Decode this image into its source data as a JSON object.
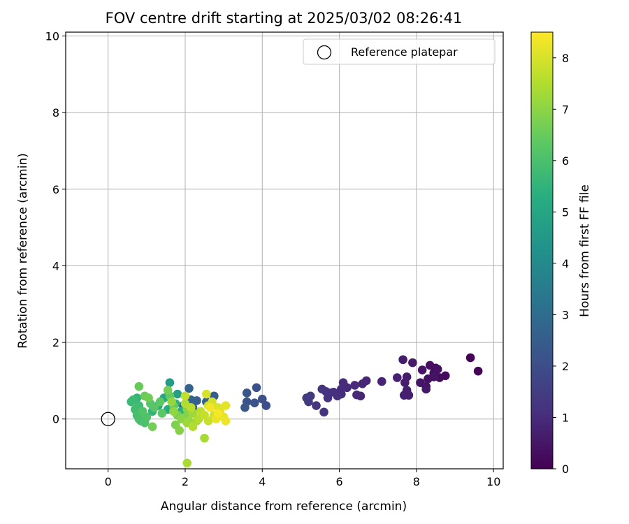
{
  "chart_data": {
    "type": "scatter",
    "title": "FOV centre drift starting at 2025/03/02 08:26:41",
    "xlabel": "Angular distance from reference (arcmin)",
    "ylabel": "Rotation from reference (arcmin)",
    "xlim": [
      -1.1,
      10.25
    ],
    "ylim": [
      -1.3,
      10.1
    ],
    "xticks": [
      "0",
      "2",
      "4",
      "6",
      "8",
      "10"
    ],
    "yticks": [
      "0",
      "2",
      "4",
      "6",
      "8",
      "10"
    ],
    "grid": true,
    "legend_position": "top-right",
    "legend": [
      {
        "label": "Reference platepar",
        "marker": "open-circle"
      }
    ],
    "reference_point": {
      "x": 0,
      "y": 0
    },
    "colorbar": {
      "label": "Hours from first FF file",
      "range": [
        0,
        8.5
      ],
      "ticks": [
        "0",
        "1",
        "2",
        "3",
        "4",
        "5",
        "6",
        "7",
        "8"
      ],
      "colormap": "viridis"
    },
    "points": [
      {
        "x": 9.4,
        "y": 1.6,
        "h": 0.05
      },
      {
        "x": 9.6,
        "y": 1.25,
        "h": 0.1
      },
      {
        "x": 8.75,
        "y": 1.13,
        "h": 0.2
      },
      {
        "x": 8.6,
        "y": 1.08,
        "h": 0.25
      },
      {
        "x": 8.5,
        "y": 1.33,
        "h": 0.3
      },
      {
        "x": 8.45,
        "y": 1.2,
        "h": 0.32
      },
      {
        "x": 8.35,
        "y": 1.4,
        "h": 0.35
      },
      {
        "x": 8.3,
        "y": 1.05,
        "h": 0.38
      },
      {
        "x": 8.25,
        "y": 0.85,
        "h": 0.4
      },
      {
        "x": 8.15,
        "y": 1.28,
        "h": 0.45
      },
      {
        "x": 8.1,
        "y": 0.95,
        "h": 0.48
      },
      {
        "x": 8.25,
        "y": 0.78,
        "h": 0.5
      },
      {
        "x": 8.45,
        "y": 1.1,
        "h": 0.42
      },
      {
        "x": 8.55,
        "y": 1.3,
        "h": 0.36
      },
      {
        "x": 7.9,
        "y": 1.47,
        "h": 0.55
      },
      {
        "x": 7.65,
        "y": 1.55,
        "h": 0.6
      },
      {
        "x": 7.75,
        "y": 1.1,
        "h": 0.62
      },
      {
        "x": 7.7,
        "y": 0.95,
        "h": 0.65
      },
      {
        "x": 7.75,
        "y": 0.75,
        "h": 0.68
      },
      {
        "x": 7.8,
        "y": 0.62,
        "h": 0.7
      },
      {
        "x": 7.68,
        "y": 0.62,
        "h": 0.72
      },
      {
        "x": 7.5,
        "y": 1.08,
        "h": 0.75
      },
      {
        "x": 7.1,
        "y": 0.98,
        "h": 0.8
      },
      {
        "x": 6.7,
        "y": 1.0,
        "h": 0.85
      },
      {
        "x": 6.6,
        "y": 0.92,
        "h": 0.88
      },
      {
        "x": 6.55,
        "y": 0.6,
        "h": 0.9
      },
      {
        "x": 6.45,
        "y": 0.63,
        "h": 0.92
      },
      {
        "x": 6.4,
        "y": 0.88,
        "h": 0.95
      },
      {
        "x": 6.2,
        "y": 0.82,
        "h": 0.98
      },
      {
        "x": 6.1,
        "y": 0.95,
        "h": 1.0
      },
      {
        "x": 6.05,
        "y": 0.78,
        "h": 1.02
      },
      {
        "x": 6.05,
        "y": 0.65,
        "h": 1.05
      },
      {
        "x": 5.95,
        "y": 0.6,
        "h": 1.08
      },
      {
        "x": 5.85,
        "y": 0.7,
        "h": 1.1
      },
      {
        "x": 5.75,
        "y": 0.68,
        "h": 1.12
      },
      {
        "x": 5.7,
        "y": 0.55,
        "h": 1.15
      },
      {
        "x": 5.65,
        "y": 0.72,
        "h": 1.18
      },
      {
        "x": 5.55,
        "y": 0.78,
        "h": 1.2
      },
      {
        "x": 5.6,
        "y": 0.18,
        "h": 1.25
      },
      {
        "x": 5.4,
        "y": 0.35,
        "h": 1.3
      },
      {
        "x": 5.25,
        "y": 0.6,
        "h": 1.35
      },
      {
        "x": 5.2,
        "y": 0.45,
        "h": 1.4
      },
      {
        "x": 5.15,
        "y": 0.55,
        "h": 1.45
      },
      {
        "x": 4.1,
        "y": 0.35,
        "h": 2.0
      },
      {
        "x": 4.0,
        "y": 0.52,
        "h": 2.05
      },
      {
        "x": 3.85,
        "y": 0.82,
        "h": 2.1
      },
      {
        "x": 3.8,
        "y": 0.42,
        "h": 2.15
      },
      {
        "x": 3.6,
        "y": 0.45,
        "h": 2.2
      },
      {
        "x": 3.6,
        "y": 0.68,
        "h": 2.25
      },
      {
        "x": 3.55,
        "y": 0.3,
        "h": 2.3
      },
      {
        "x": 2.75,
        "y": 0.6,
        "h": 2.5
      },
      {
        "x": 2.55,
        "y": 0.45,
        "h": 2.55
      },
      {
        "x": 2.3,
        "y": 0.48,
        "h": 2.6
      },
      {
        "x": 2.15,
        "y": 0.5,
        "h": 2.65
      },
      {
        "x": 2.1,
        "y": 0.8,
        "h": 2.7
      },
      {
        "x": 2.2,
        "y": 0.3,
        "h": 2.75
      },
      {
        "x": 1.95,
        "y": 0.35,
        "h": 2.8
      },
      {
        "x": 1.6,
        "y": 0.95,
        "h": 4.6
      },
      {
        "x": 1.8,
        "y": 0.65,
        "h": 4.8
      },
      {
        "x": 1.45,
        "y": 0.55,
        "h": 5.0
      },
      {
        "x": 1.3,
        "y": 0.35,
        "h": 5.1
      },
      {
        "x": 1.55,
        "y": 0.25,
        "h": 5.2
      },
      {
        "x": 1.75,
        "y": 0.4,
        "h": 5.3
      },
      {
        "x": 1.9,
        "y": 0.2,
        "h": 5.4
      },
      {
        "x": 1.15,
        "y": 0.2,
        "h": 5.5
      },
      {
        "x": 0.75,
        "y": 0.55,
        "h": 5.6
      },
      {
        "x": 0.6,
        "y": 0.45,
        "h": 5.7
      },
      {
        "x": 0.65,
        "y": 0.5,
        "h": 5.75
      },
      {
        "x": 0.8,
        "y": 0.35,
        "h": 5.8
      },
      {
        "x": 0.7,
        "y": 0.25,
        "h": 5.85
      },
      {
        "x": 0.75,
        "y": 0.1,
        "h": 5.9
      },
      {
        "x": 0.8,
        "y": 0.0,
        "h": 5.95
      },
      {
        "x": 0.85,
        "y": -0.05,
        "h": 6.0
      },
      {
        "x": 0.95,
        "y": -0.1,
        "h": 6.05
      },
      {
        "x": 1.0,
        "y": 0.05,
        "h": 6.1
      },
      {
        "x": 0.9,
        "y": 0.2,
        "h": 6.15
      },
      {
        "x": 1.1,
        "y": 0.4,
        "h": 6.2
      },
      {
        "x": 1.2,
        "y": 0.3,
        "h": 6.25
      },
      {
        "x": 1.4,
        "y": 0.15,
        "h": 6.3
      },
      {
        "x": 1.35,
        "y": 0.45,
        "h": 6.35
      },
      {
        "x": 1.6,
        "y": 0.6,
        "h": 6.4
      },
      {
        "x": 1.7,
        "y": 0.35,
        "h": 6.45
      },
      {
        "x": 0.8,
        "y": 0.85,
        "h": 6.5
      },
      {
        "x": 0.95,
        "y": 0.6,
        "h": 6.55
      },
      {
        "x": 1.05,
        "y": 0.55,
        "h": 6.6
      },
      {
        "x": 1.15,
        "y": -0.2,
        "h": 6.65
      },
      {
        "x": 1.55,
        "y": 0.75,
        "h": 6.7
      },
      {
        "x": 1.8,
        "y": 0.1,
        "h": 6.75
      },
      {
        "x": 1.75,
        "y": -0.15,
        "h": 6.8
      },
      {
        "x": 2.0,
        "y": 0.05,
        "h": 6.85
      },
      {
        "x": 1.85,
        "y": -0.3,
        "h": 6.9
      },
      {
        "x": 2.05,
        "y": 0.25,
        "h": 6.95
      },
      {
        "x": 1.9,
        "y": 0.0,
        "h": 7.0
      },
      {
        "x": 1.7,
        "y": 0.2,
        "h": 7.05
      },
      {
        "x": 1.65,
        "y": 0.45,
        "h": 7.1
      },
      {
        "x": 2.1,
        "y": -0.05,
        "h": 7.15
      },
      {
        "x": 2.05,
        "y": -0.1,
        "h": 7.2
      },
      {
        "x": 2.2,
        "y": 0.15,
        "h": 7.25
      },
      {
        "x": 2.3,
        "y": -0.05,
        "h": 7.3
      },
      {
        "x": 2.5,
        "y": -0.5,
        "h": 7.35
      },
      {
        "x": 2.05,
        "y": -1.15,
        "h": 7.4
      },
      {
        "x": 2.0,
        "y": 0.4,
        "h": 7.45
      },
      {
        "x": 2.2,
        "y": -0.2,
        "h": 7.5
      },
      {
        "x": 2.35,
        "y": 0.0,
        "h": 7.55
      },
      {
        "x": 2.15,
        "y": 0.3,
        "h": 7.6
      },
      {
        "x": 2.4,
        "y": 0.2,
        "h": 7.65
      },
      {
        "x": 2.0,
        "y": 0.6,
        "h": 7.7
      },
      {
        "x": 2.5,
        "y": 0.1,
        "h": 7.75
      },
      {
        "x": 2.6,
        "y": -0.05,
        "h": 7.8
      },
      {
        "x": 2.75,
        "y": 0.1,
        "h": 7.85
      },
      {
        "x": 2.6,
        "y": 0.35,
        "h": 7.9
      },
      {
        "x": 2.7,
        "y": 0.45,
        "h": 7.95
      },
      {
        "x": 2.55,
        "y": 0.65,
        "h": 8.0
      },
      {
        "x": 2.85,
        "y": 0.3,
        "h": 8.05
      },
      {
        "x": 2.9,
        "y": 0.2,
        "h": 8.1
      },
      {
        "x": 3.05,
        "y": 0.35,
        "h": 8.15
      },
      {
        "x": 3.0,
        "y": 0.05,
        "h": 8.2
      },
      {
        "x": 2.8,
        "y": 0.0,
        "h": 8.25
      },
      {
        "x": 3.05,
        "y": -0.05,
        "h": 8.3
      },
      {
        "x": 2.65,
        "y": 0.3,
        "h": 8.35
      },
      {
        "x": 2.85,
        "y": 0.15,
        "h": 8.4
      }
    ]
  }
}
